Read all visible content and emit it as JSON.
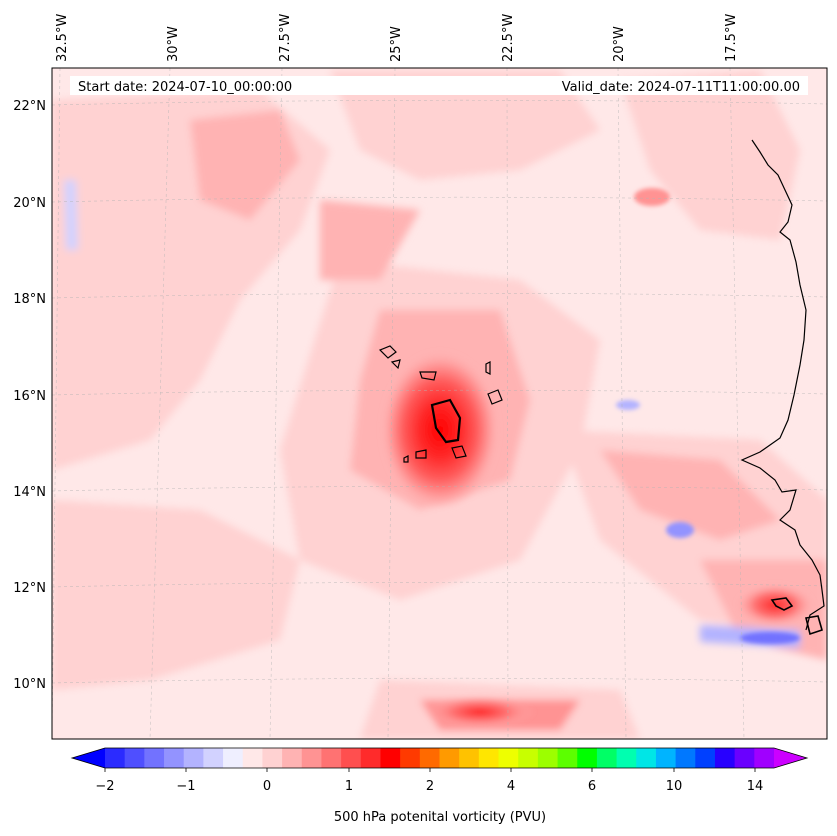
{
  "map": {
    "start_label": "Start date: 2024-07-10_00:00:00",
    "valid_label": "Valid_date: 2024-07-11T11:00:00.00",
    "lon_labels": [
      "32.5°W",
      "30°W",
      "27.5°W",
      "25°W",
      "22.5°W",
      "20°W",
      "17.5°W"
    ],
    "lat_labels": [
      "22°N",
      "20°N",
      "18°N",
      "16°N",
      "14°N",
      "12°N",
      "10°N"
    ],
    "gridlines": true,
    "coastline_color": "#000000",
    "background_color": "#ffe8e8",
    "features": {
      "cyclone_core": "Tropical cyclone PV maximum near 15.5°N, 24.2°W",
      "islands": "Cape Verde islands outlined",
      "coast": "West African coastline on the east edge"
    }
  },
  "colorbar": {
    "label": "500 hPa potenital vorticity (PVU)",
    "tick_labels": [
      "−2",
      "−1",
      "0",
      "1",
      "2",
      "4",
      "6",
      "10",
      "14"
    ],
    "colors": [
      "#0000ff",
      "#2b2bff",
      "#4f4fff",
      "#7272ff",
      "#9393ff",
      "#b3b3ff",
      "#d2d2ff",
      "#efefff",
      "#ffe8e8",
      "#ffd2d2",
      "#ffb3b3",
      "#ff9393",
      "#ff7272",
      "#ff4f4f",
      "#ff2b2b",
      "#ff0000",
      "#ff3a00",
      "#ff6a00",
      "#ff9a00",
      "#ffc200",
      "#ffe600",
      "#eeff00",
      "#c8ff00",
      "#9cff00",
      "#5cff00",
      "#00ff00",
      "#00ff66",
      "#00ffb0",
      "#00e6e6",
      "#00b4ff",
      "#0078ff",
      "#0040ff",
      "#2800ff",
      "#6a00ff",
      "#a000ff",
      "#cc00ff"
    ],
    "extend": "both"
  }
}
